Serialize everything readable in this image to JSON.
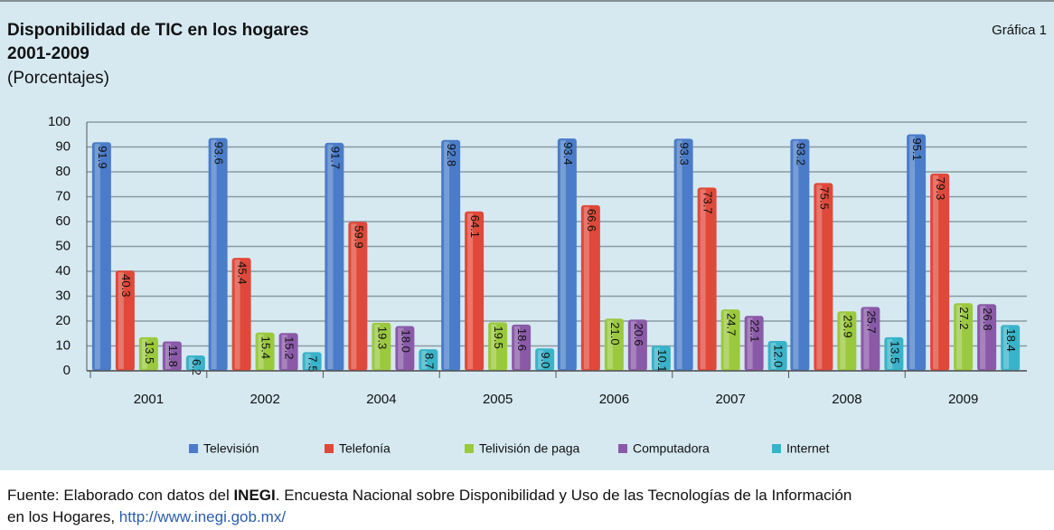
{
  "chart_data": {
    "type": "bar",
    "title": "Disponibilidad de TIC en los hogares",
    "subtitle": "2001-2009",
    "unit_label": "(Porcentajes)",
    "annotation": "Gráfica 1",
    "categories": [
      "2001",
      "2002",
      "2004",
      "2005",
      "2006",
      "2007",
      "2008",
      "2009"
    ],
    "series": [
      {
        "name": "Televisión",
        "color": "#4a7cc9",
        "values": [
          91.9,
          93.6,
          91.7,
          92.8,
          93.4,
          93.3,
          93.2,
          95.1
        ],
        "value_labels": [
          "91.9",
          "93.6",
          "91.7",
          "92.8",
          "93.4",
          "93.3",
          "93.2",
          "95.1"
        ]
      },
      {
        "name": "Telefonía",
        "color": "#e0483a",
        "values": [
          40.3,
          45.4,
          59.9,
          64.1,
          66.6,
          73.7,
          75.5,
          79.3
        ],
        "value_labels": [
          "40.3",
          "45.4",
          "59.9",
          "64.1",
          "66.6",
          "73.7",
          "75.5",
          "79.3"
        ]
      },
      {
        "name": "Telivisión de paga",
        "color": "#9bc93e",
        "values": [
          13.5,
          15.4,
          19.3,
          19.5,
          21.0,
          24.7,
          23.9,
          27.2
        ],
        "value_labels": [
          "13.5",
          "15.4",
          "19.3",
          "19.5",
          "21.0",
          "24.7",
          "23.9",
          "27.2"
        ]
      },
      {
        "name": "Computadora",
        "color": "#8a5aa8",
        "values": [
          11.8,
          15.2,
          18.0,
          18.6,
          20.6,
          22.1,
          25.7,
          26.8
        ],
        "value_labels": [
          "11.8",
          "15.2",
          "18.0",
          "18.6",
          "20.6",
          "22.1",
          "25.7",
          "26.8"
        ]
      },
      {
        "name": "Internet",
        "color": "#38b3c9",
        "values": [
          6.2,
          7.5,
          8.7,
          9.0,
          10.1,
          12.0,
          13.5,
          18.4
        ],
        "value_labels": [
          "6.2",
          "7.5",
          "8.7",
          "9.0",
          "10.1",
          "12.0",
          "13.5",
          "18.4"
        ]
      }
    ],
    "ylim": [
      0,
      100
    ],
    "yticks": [
      0,
      10,
      20,
      30,
      40,
      50,
      60,
      70,
      80,
      90,
      100
    ],
    "grid": true,
    "source": {
      "prefix": "Fuente: Elaborado con datos del ",
      "bold": "INEGI",
      "text": ". Encuesta Nacional sobre Disponibilidad y Uso de las Tecnologías de la Información",
      "text2": "en los Hogares, ",
      "link": "http://www.inegi.gob.mx/"
    }
  }
}
